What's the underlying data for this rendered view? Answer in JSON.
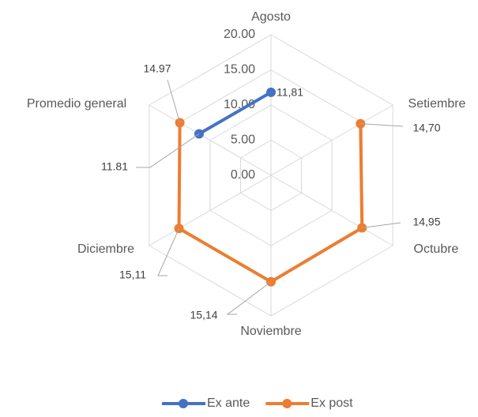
{
  "chart_data": {
    "type": "radar",
    "categories": [
      "Agosto",
      "Setiembre",
      "Octubre",
      "Noviembre",
      "Diciembre",
      "Promedio general"
    ],
    "series": [
      {
        "name": "Ex ante",
        "color": "#4472c4",
        "values": [
          11.81,
          null,
          null,
          null,
          null,
          11.81
        ],
        "value_labels": [
          "11,81",
          null,
          null,
          null,
          null,
          "11.81"
        ]
      },
      {
        "name": "Ex post",
        "color": "#ed7d31",
        "values": [
          null,
          14.7,
          14.95,
          15.14,
          15.11,
          14.97
        ],
        "value_labels": [
          null,
          "14,70",
          "14,95",
          "15,14",
          "15,11",
          "14.97"
        ]
      }
    ],
    "ylim": [
      0,
      20
    ],
    "yticks": [
      {
        "value": 0,
        "label": "0.00"
      },
      {
        "value": 5,
        "label": "5.00"
      },
      {
        "value": 10,
        "label": "10.00"
      },
      {
        "value": 15,
        "label": "15.00"
      },
      {
        "value": 20,
        "label": "20.00"
      }
    ],
    "grid": true,
    "legend": "bottom"
  }
}
